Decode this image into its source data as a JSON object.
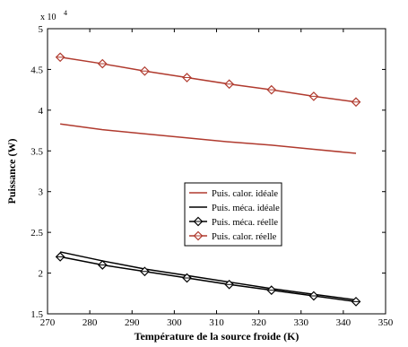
{
  "chart_data": {
    "type": "line",
    "xlabel": "Température de la source froide (K)",
    "ylabel": "Puissance (W)",
    "y_multiplier_label": "x 10",
    "y_multiplier_exponent": "4",
    "xlim": [
      270,
      350
    ],
    "ylim": [
      1.5,
      5
    ],
    "xticks": [
      "270",
      "280",
      "290",
      "300",
      "310",
      "320",
      "330",
      "340",
      "350"
    ],
    "yticks": [
      "1.5",
      "2",
      "2.5",
      "3",
      "3.5",
      "4",
      "4.5",
      "5"
    ],
    "x": [
      273,
      283,
      293,
      303,
      313,
      323,
      333,
      343
    ],
    "series": [
      {
        "name": "Puis. calor. idéale",
        "color": "#b03a2e",
        "marker": "none",
        "values": [
          3.83,
          3.76,
          3.71,
          3.66,
          3.61,
          3.57,
          3.52,
          3.47
        ]
      },
      {
        "name": "Puis. méca. idéale",
        "color": "#000000",
        "marker": "none",
        "values": [
          2.26,
          2.15,
          2.05,
          1.97,
          1.89,
          1.81,
          1.74,
          1.67
        ]
      },
      {
        "name": "Puis. méca. réelle",
        "color": "#000000",
        "marker": "diamond",
        "values": [
          2.2,
          2.1,
          2.02,
          1.94,
          1.86,
          1.79,
          1.72,
          1.65
        ]
      },
      {
        "name": "Puis. calor. réelle",
        "color": "#b03a2e",
        "marker": "diamond",
        "values": [
          4.65,
          4.57,
          4.48,
          4.4,
          4.32,
          4.25,
          4.17,
          4.1
        ]
      }
    ],
    "legend_position": "center-right",
    "grid": false
  }
}
